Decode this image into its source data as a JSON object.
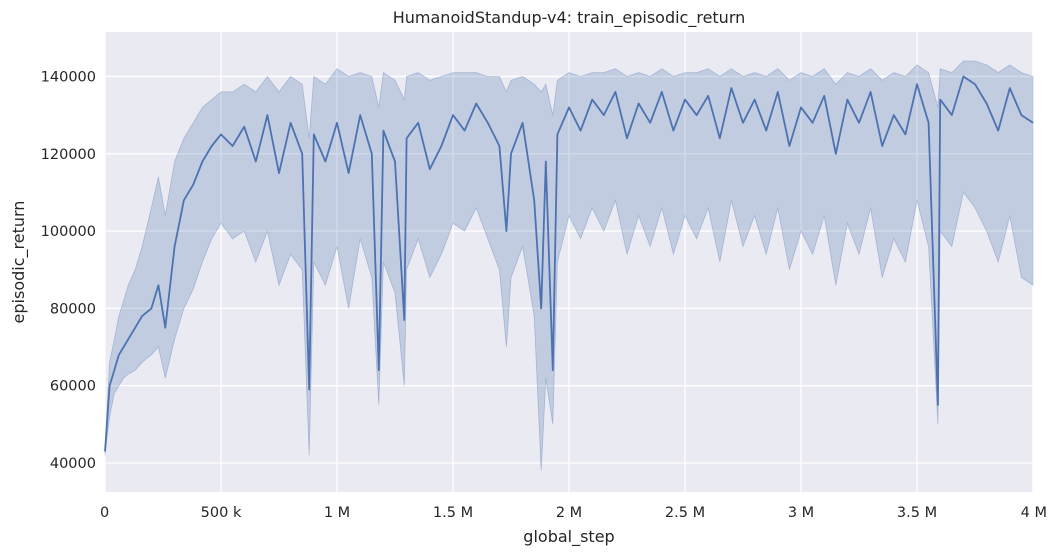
{
  "chart_data": {
    "type": "line",
    "title": "HumanoidStandup-v4: train_episodic_return",
    "xlabel": "global_step",
    "ylabel": "episodic_return",
    "xlim": [
      0,
      4000000
    ],
    "ylim": [
      32500,
      151500
    ],
    "x_ticks": [
      {
        "value": 0,
        "label": "0"
      },
      {
        "value": 500000,
        "label": "500 k"
      },
      {
        "value": 1000000,
        "label": "1 M"
      },
      {
        "value": 1500000,
        "label": "1.5 M"
      },
      {
        "value": 2000000,
        "label": "2 M"
      },
      {
        "value": 2500000,
        "label": "2.5 M"
      },
      {
        "value": 3000000,
        "label": "3 M"
      },
      {
        "value": 3500000,
        "label": "3.5 M"
      },
      {
        "value": 4000000,
        "label": "4 M"
      }
    ],
    "y_ticks": [
      {
        "value": 40000,
        "label": "40000"
      },
      {
        "value": 60000,
        "label": "60000"
      },
      {
        "value": 80000,
        "label": "80000"
      },
      {
        "value": 100000,
        "label": "100000"
      },
      {
        "value": 120000,
        "label": "120000"
      },
      {
        "value": 140000,
        "label": "140000"
      }
    ],
    "grid": true,
    "colors": {
      "background": "#eaeaf2",
      "grid": "#ffffff",
      "line": "#4c72b0",
      "band": "#4c72b0"
    },
    "series": [
      {
        "x": [
          0,
          20000,
          40000,
          60000,
          80000,
          100000,
          130000,
          160000,
          200000,
          230000,
          260000,
          300000,
          340000,
          380000,
          420000,
          460000,
          500000,
          550000,
          600000,
          650000,
          700000,
          750000,
          800000,
          850000,
          880000,
          900000,
          950000,
          1000000,
          1050000,
          1100000,
          1150000,
          1180000,
          1200000,
          1250000,
          1290000,
          1300000,
          1350000,
          1400000,
          1450000,
          1500000,
          1550000,
          1600000,
          1650000,
          1700000,
          1730000,
          1750000,
          1800000,
          1850000,
          1880000,
          1900000,
          1930000,
          1950000,
          2000000,
          2050000,
          2100000,
          2150000,
          2200000,
          2250000,
          2300000,
          2350000,
          2400000,
          2450000,
          2500000,
          2550000,
          2600000,
          2650000,
          2700000,
          2750000,
          2800000,
          2850000,
          2900000,
          2950000,
          3000000,
          3050000,
          3100000,
          3150000,
          3200000,
          3250000,
          3300000,
          3350000,
          3400000,
          3450000,
          3500000,
          3550000,
          3590000,
          3600000,
          3650000,
          3700000,
          3750000,
          3800000,
          3850000,
          3900000,
          3950000,
          4000000
        ],
        "y": [
          43000,
          60000,
          64000,
          68000,
          70000,
          72000,
          75000,
          78000,
          80000,
          86000,
          75000,
          96000,
          108000,
          112000,
          118000,
          122000,
          125000,
          122000,
          127000,
          118000,
          130000,
          115000,
          128000,
          120000,
          59000,
          125000,
          118000,
          128000,
          115000,
          130000,
          120000,
          64000,
          126000,
          118000,
          77000,
          124000,
          128000,
          116000,
          122000,
          130000,
          126000,
          133000,
          128000,
          122000,
          100000,
          120000,
          128000,
          108000,
          80000,
          118000,
          64000,
          125000,
          132000,
          126000,
          134000,
          130000,
          136000,
          124000,
          133000,
          128000,
          136000,
          126000,
          134000,
          130000,
          135000,
          124000,
          137000,
          128000,
          134000,
          126000,
          136000,
          122000,
          132000,
          128000,
          135000,
          120000,
          134000,
          128000,
          136000,
          122000,
          130000,
          125000,
          138000,
          128000,
          55000,
          134000,
          130000,
          140000,
          138000,
          133000,
          126000,
          137000,
          130000,
          128000
        ],
        "lower": [
          42000,
          52000,
          58000,
          60000,
          62000,
          63000,
          64000,
          66000,
          68000,
          70000,
          62000,
          72000,
          80000,
          85000,
          92000,
          98000,
          102000,
          98000,
          100000,
          92000,
          100000,
          86000,
          94000,
          90000,
          42000,
          92000,
          86000,
          96000,
          80000,
          98000,
          88000,
          55000,
          92000,
          84000,
          60000,
          90000,
          98000,
          88000,
          94000,
          102000,
          100000,
          106000,
          98000,
          90000,
          70000,
          88000,
          96000,
          78000,
          38000,
          62000,
          50000,
          92000,
          104000,
          98000,
          106000,
          100000,
          108000,
          94000,
          104000,
          96000,
          106000,
          94000,
          104000,
          98000,
          106000,
          92000,
          108000,
          96000,
          104000,
          94000,
          106000,
          90000,
          100000,
          94000,
          104000,
          86000,
          102000,
          94000,
          106000,
          88000,
          98000,
          92000,
          108000,
          96000,
          50000,
          100000,
          96000,
          110000,
          106000,
          100000,
          92000,
          104000,
          88000,
          86000
        ],
        "upper": [
          44000,
          66000,
          72000,
          78000,
          82000,
          86000,
          90000,
          96000,
          106000,
          114000,
          104000,
          118000,
          124000,
          128000,
          132000,
          134000,
          136000,
          136000,
          138000,
          136000,
          140000,
          136000,
          140000,
          138000,
          124000,
          140000,
          138000,
          142000,
          140000,
          141000,
          140000,
          132000,
          141000,
          139000,
          134000,
          140000,
          141000,
          139000,
          140000,
          141000,
          141000,
          141000,
          140000,
          140000,
          136000,
          139000,
          140000,
          138000,
          136000,
          138000,
          130000,
          139000,
          141000,
          140000,
          141000,
          141000,
          142000,
          140000,
          141000,
          140000,
          142000,
          140000,
          141000,
          141000,
          142000,
          140000,
          142000,
          140000,
          141000,
          140000,
          142000,
          139000,
          141000,
          140000,
          142000,
          138000,
          141000,
          140000,
          142000,
          139000,
          141000,
          140000,
          143000,
          141000,
          132000,
          142000,
          141000,
          144000,
          144000,
          143000,
          141000,
          143000,
          141000,
          140000
        ]
      }
    ]
  }
}
